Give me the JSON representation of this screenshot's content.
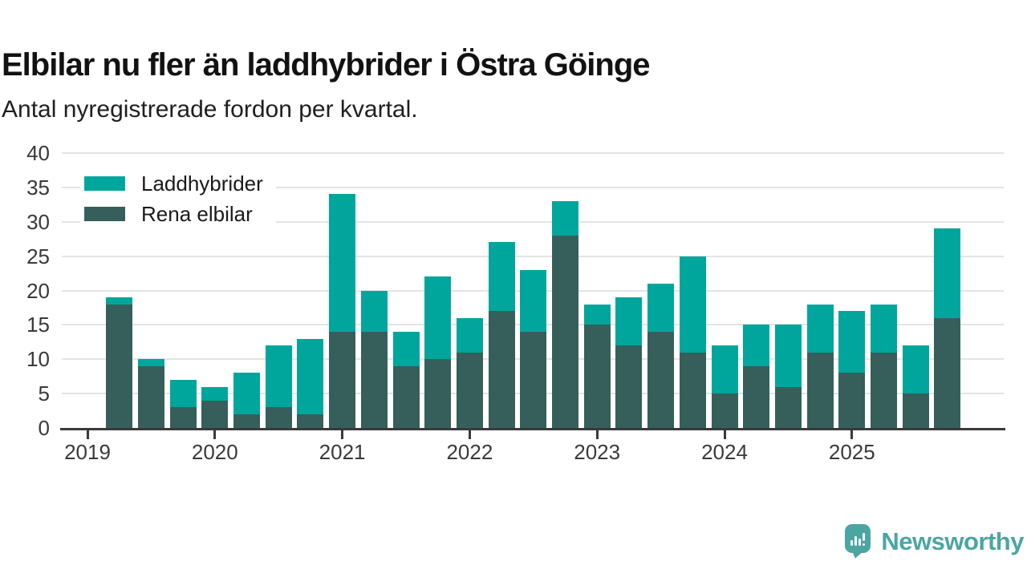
{
  "header": {
    "title": "Elbilar nu fler än laddhybrider i Östra Göinge",
    "subtitle": "Antal nyregistrerade fordon per kvartal."
  },
  "chart_data": {
    "type": "bar",
    "stacked": true,
    "title": "Elbilar nu fler än laddhybrider i Östra Göinge",
    "subtitle": "Antal nyregistrerade fordon per kvartal.",
    "categories": [
      "2019 Q2",
      "2019 Q3",
      "2019 Q4",
      "2020 Q1",
      "2020 Q2",
      "2020 Q3",
      "2020 Q4",
      "2021 Q1",
      "2021 Q2",
      "2021 Q3",
      "2021 Q4",
      "2022 Q1",
      "2022 Q2",
      "2022 Q3",
      "2022 Q4",
      "2023 Q1",
      "2023 Q2",
      "2023 Q3",
      "2023 Q4",
      "2024 Q1",
      "2024 Q2",
      "2024 Q3",
      "2024 Q4",
      "2025 Q1",
      "2025 Q2",
      "2025 Q3",
      "2025 Q4"
    ],
    "series": [
      {
        "name": "Rena elbilar",
        "color": "#365f5b",
        "values": [
          18,
          9,
          3,
          4,
          2,
          3,
          2,
          14,
          14,
          9,
          10,
          11,
          17,
          14,
          28,
          15,
          12,
          14,
          11,
          5,
          9,
          6,
          11,
          8,
          11,
          5,
          16
        ]
      },
      {
        "name": "Laddhybrider",
        "color": "#00a69c",
        "values": [
          1,
          1,
          4,
          2,
          6,
          9,
          11,
          20,
          6,
          5,
          12,
          5,
          10,
          9,
          5,
          3,
          7,
          7,
          14,
          7,
          6,
          9,
          7,
          9,
          7,
          7,
          13
        ]
      }
    ],
    "totals": [
      19,
      10,
      7,
      6,
      8,
      12,
      13,
      34,
      20,
      14,
      22,
      16,
      27,
      23,
      33,
      18,
      19,
      21,
      25,
      12,
      15,
      15,
      18,
      17,
      18,
      12,
      29
    ],
    "y_ticks": [
      0,
      5,
      10,
      15,
      20,
      25,
      30,
      35,
      40
    ],
    "ylim": [
      0,
      40
    ],
    "x_tick_labels": [
      "2019",
      "2020",
      "2021",
      "2022",
      "2023",
      "2024",
      "2025"
    ],
    "grid": "horizontal",
    "legend_position": "top-left"
  },
  "legend": {
    "items": [
      {
        "label": "Laddhybrider",
        "color": "#00a69c"
      },
      {
        "label": "Rena elbilar",
        "color": "#365f5b"
      }
    ]
  },
  "footer": {
    "brand": "Newsworthy",
    "brand_color": "#4ba6a2"
  },
  "colors": {
    "laddhybrider": "#00a69c",
    "rena_elbilar": "#365f5b",
    "gridline": "#e4e4e4",
    "axis": "#3a3a3a",
    "background": "#ffffff"
  }
}
